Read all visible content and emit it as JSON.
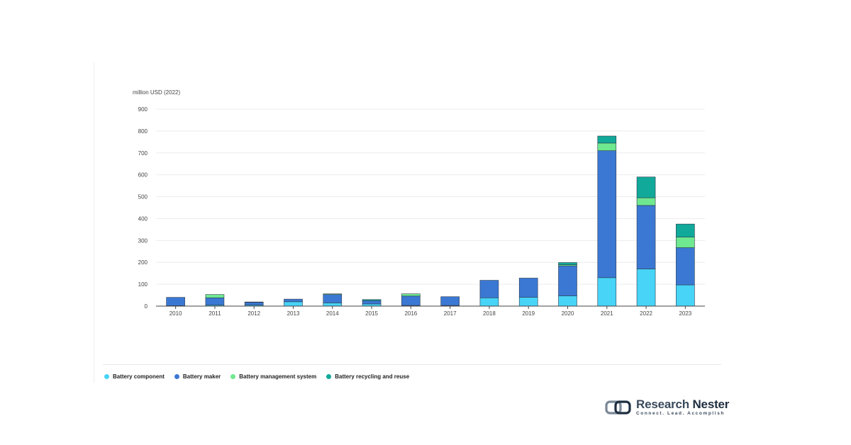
{
  "chart_data": {
    "type": "bar",
    "stacked": true,
    "ylabel": "million USD (2022)",
    "ylim": [
      0,
      900
    ],
    "yticks": [
      0,
      100,
      200,
      300,
      400,
      500,
      600,
      700,
      800,
      900
    ],
    "grid": true,
    "legend_position": "bottom-left",
    "categories": [
      "2010",
      "2011",
      "2012",
      "2013",
      "2014",
      "2015",
      "2016",
      "2017",
      "2018",
      "2019",
      "2020",
      "2021",
      "2022",
      "2023"
    ],
    "series": [
      {
        "name": "Battery component",
        "color": "#47d4f7",
        "values": [
          2,
          5,
          5,
          20,
          15,
          10,
          3,
          3,
          38,
          40,
          47,
          130,
          170,
          97
        ]
      },
      {
        "name": "Battery maker",
        "color": "#3b78d4",
        "values": [
          38,
          33,
          12,
          12,
          38,
          15,
          43,
          40,
          80,
          88,
          137,
          580,
          290,
          170
        ]
      },
      {
        "name": "Battery management system",
        "color": "#6fe88f",
        "values": [
          0,
          15,
          0,
          0,
          3,
          0,
          10,
          0,
          0,
          0,
          5,
          35,
          35,
          48
        ]
      },
      {
        "name": "Battery recycling and reuse",
        "color": "#11a99a",
        "values": [
          0,
          0,
          2,
          0,
          0,
          5,
          0,
          0,
          0,
          0,
          10,
          32,
          95,
          60
        ]
      }
    ]
  },
  "logo": {
    "name_part1": "Research",
    "name_part2": "Nester",
    "tagline": "Connect. Lead. Accomplish"
  }
}
